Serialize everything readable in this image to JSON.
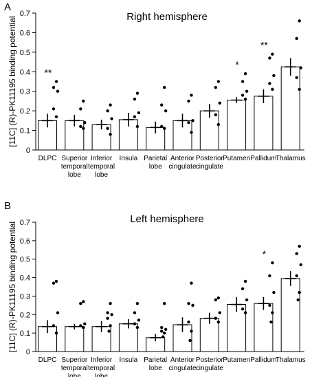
{
  "chart_data": [
    {
      "type": "bar",
      "panel_label": "A",
      "title": "Right hemisphere",
      "ylabel": "[11C] (R)-PK11195 binding potential",
      "ylim": [
        0,
        0.7
      ],
      "yticks": [
        "0",
        "0.1",
        "0.2",
        "0.3",
        "0.4",
        "0.5",
        "0.6",
        "0.7"
      ],
      "categories": [
        {
          "lines": [
            "DLPC"
          ]
        },
        {
          "lines": [
            "Superior",
            "temporal",
            "lobe"
          ]
        },
        {
          "lines": [
            "Inferior",
            "temporal",
            "lobe"
          ]
        },
        {
          "lines": [
            "Insula"
          ]
        },
        {
          "lines": [
            "Parietal",
            "lobe"
          ]
        },
        {
          "lines": [
            "Anterior",
            "cingulate"
          ]
        },
        {
          "lines": [
            "Posterior",
            "cingulate"
          ]
        },
        {
          "lines": [
            "Putamen"
          ]
        },
        {
          "lines": [
            "Pallidum"
          ]
        },
        {
          "lines": [
            "Thalamus"
          ]
        }
      ],
      "values": [
        0.15,
        0.15,
        0.13,
        0.155,
        0.115,
        0.15,
        0.2,
        0.255,
        0.275,
        0.425
      ],
      "errors": [
        0.035,
        0.03,
        0.025,
        0.035,
        0.03,
        0.035,
        0.035,
        0.015,
        0.035,
        0.045
      ],
      "points": [
        [
          0.35,
          0.32,
          0.3,
          0.21,
          0.17
        ],
        [
          0.25,
          0.21,
          0.14,
          0.12,
          0.11
        ],
        [
          0.23,
          0.2,
          0.16,
          0.11,
          0.08
        ],
        [
          0.29,
          0.26,
          0.19,
          0.17,
          0.12
        ],
        [
          0.32,
          0.23,
          0.2,
          0.12,
          0.11
        ],
        [
          0.28,
          0.25,
          0.15,
          0.14,
          0.09
        ],
        [
          0.35,
          0.32,
          0.24,
          0.18,
          0.13
        ],
        [
          0.39,
          0.35,
          0.3,
          0.28,
          0.26
        ],
        [
          0.49,
          0.47,
          0.38,
          0.34,
          0.31
        ],
        [
          0.66,
          0.57,
          0.42,
          0.37,
          0.31
        ]
      ],
      "annotations": [
        "**",
        "",
        "",
        "",
        "",
        "",
        "",
        "*",
        "**",
        ""
      ]
    },
    {
      "type": "bar",
      "panel_label": "B",
      "title": "Left hemisphere",
      "ylabel": "[11C] (R)-PK11195 binding potential",
      "ylim": [
        0,
        0.7
      ],
      "yticks": [
        "0",
        "0.1",
        "0.2",
        "0.3",
        "0.4",
        "0.5",
        "0.6",
        "0.7"
      ],
      "categories": [
        {
          "lines": [
            "DLPC"
          ]
        },
        {
          "lines": [
            "Superior",
            "temporal",
            "lobe"
          ]
        },
        {
          "lines": [
            "Inferior",
            "temporal",
            "lobe"
          ]
        },
        {
          "lines": [
            "Insula"
          ]
        },
        {
          "lines": [
            "Parietal",
            "lobe"
          ]
        },
        {
          "lines": [
            "Anterior",
            "cingulate"
          ]
        },
        {
          "lines": [
            "Posterior",
            "cingulate"
          ]
        },
        {
          "lines": [
            "Putamen"
          ]
        },
        {
          "lines": [
            "Pallidum"
          ]
        },
        {
          "lines": [
            "Thalamus"
          ]
        }
      ],
      "values": [
        0.135,
        0.135,
        0.135,
        0.15,
        0.075,
        0.145,
        0.18,
        0.255,
        0.26,
        0.395
      ],
      "errors": [
        0.035,
        0.015,
        0.03,
        0.025,
        0.02,
        0.04,
        0.03,
        0.04,
        0.035,
        0.04
      ],
      "points": [
        [
          0.38,
          0.37,
          0.21,
          0.14,
          0.1
        ],
        [
          0.27,
          0.26,
          0.15,
          0.14,
          0.13
        ],
        [
          0.26,
          0.21,
          0.2,
          0.18,
          0.14,
          0.11
        ],
        [
          0.26,
          0.21,
          0.17,
          0.15,
          0.13
        ],
        [
          0.26,
          0.13,
          0.12,
          0.11,
          0.1,
          0.08
        ],
        [
          0.37,
          0.26,
          0.25,
          0.16,
          0.11,
          0.06
        ],
        [
          0.29,
          0.28,
          0.21,
          0.18,
          0.16
        ],
        [
          0.38,
          0.34,
          0.28,
          0.23,
          0.21
        ],
        [
          0.48,
          0.41,
          0.32,
          0.25,
          0.21,
          0.16
        ],
        [
          0.57,
          0.53,
          0.47,
          0.41,
          0.32,
          0.28
        ]
      ],
      "annotations": [
        "",
        "",
        "",
        "",
        "",
        "",
        "",
        "",
        "*",
        ""
      ]
    }
  ]
}
